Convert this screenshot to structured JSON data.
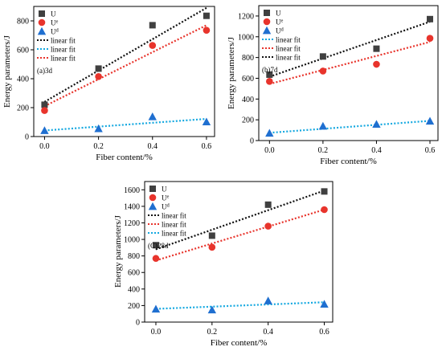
{
  "chart_data": [
    {
      "type": "scatter",
      "panel_label": "(a)3d",
      "xlabel": "Fiber content/%",
      "ylabel": "Energy parameters/J",
      "xlim": [
        -0.04,
        0.63
      ],
      "ylim": [
        0,
        900
      ],
      "xticks": [
        0.0,
        0.2,
        0.4,
        0.6
      ],
      "xtick_labels": [
        "0.0",
        "0.2",
        "0.4",
        "0.6"
      ],
      "yticks": [
        0,
        200,
        400,
        600,
        800
      ],
      "ytick_labels": [
        "0",
        "200",
        "400",
        "600",
        "800"
      ],
      "legend_position": "top-left",
      "x": [
        0.0,
        0.2,
        0.4,
        0.6
      ],
      "series": [
        {
          "name": "U",
          "sup": "",
          "marker": "square",
          "color": "#404040",
          "values": [
            220,
            470,
            770,
            835
          ]
        },
        {
          "name": "U",
          "sup": "e",
          "marker": "circle",
          "color": "#e8342c",
          "values": [
            180,
            415,
            630,
            735
          ]
        },
        {
          "name": "U",
          "sup": "d",
          "marker": "triangle",
          "color": "#1f6fd0",
          "values": [
            42,
            55,
            138,
            102
          ]
        }
      ],
      "fits": [
        {
          "label": "linear fit",
          "color": "#111111",
          "x": [
            0.0,
            0.6
          ],
          "y": [
            240,
            890
          ]
        },
        {
          "label": "linear fit",
          "color": "#14a8e0",
          "x": [
            0.0,
            0.6
          ],
          "y": [
            42,
            122
          ]
        },
        {
          "label": "linear fit",
          "color": "#e8342c",
          "x": [
            0.0,
            0.6
          ],
          "y": [
            210,
            770
          ]
        }
      ]
    },
    {
      "type": "scatter",
      "panel_label": "(b)7d",
      "xlabel": "Fiber content/%",
      "ylabel": "Energy parameters/J",
      "xlim": [
        -0.04,
        0.63
      ],
      "ylim": [
        0,
        1300
      ],
      "xticks": [
        0.0,
        0.2,
        0.4,
        0.6
      ],
      "xtick_labels": [
        "0.0",
        "0.2",
        "0.4",
        "0.6"
      ],
      "yticks": [
        0,
        200,
        400,
        600,
        800,
        1000,
        1200
      ],
      "ytick_labels": [
        "0",
        "200",
        "400",
        "600",
        "800",
        "1000",
        "1200"
      ],
      "legend_position": "top-left",
      "x": [
        0.0,
        0.2,
        0.4,
        0.6
      ],
      "series": [
        {
          "name": "U",
          "sup": "",
          "marker": "square",
          "color": "#404040",
          "values": [
            635,
            810,
            885,
            1170
          ]
        },
        {
          "name": "U",
          "sup": "e",
          "marker": "circle",
          "color": "#e8342c",
          "values": [
            570,
            670,
            735,
            985
          ]
        },
        {
          "name": "U",
          "sup": "d",
          "marker": "triangle",
          "color": "#1f6fd0",
          "values": [
            72,
            140,
            158,
            188
          ]
        }
      ],
      "fits": [
        {
          "label": "linear fit",
          "color": "#14a8e0",
          "x": [
            0.0,
            0.6
          ],
          "y": [
            75,
            190
          ]
        },
        {
          "label": "linear fit",
          "color": "#e8342c",
          "x": [
            0.0,
            0.6
          ],
          "y": [
            545,
            950
          ]
        },
        {
          "label": "linear fit",
          "color": "#111111",
          "x": [
            0.0,
            0.6
          ],
          "y": [
            615,
            1145
          ]
        }
      ]
    },
    {
      "type": "scatter",
      "panel_label": "(C)28d",
      "xlabel": "Fiber content/%",
      "ylabel": "Energy parameters/J",
      "xlim": [
        -0.04,
        0.63
      ],
      "ylim": [
        0,
        1700
      ],
      "xticks": [
        0.0,
        0.2,
        0.4,
        0.6
      ],
      "xtick_labels": [
        "0.0",
        "0.2",
        "0.4",
        "0.6"
      ],
      "yticks": [
        0,
        200,
        400,
        600,
        800,
        1000,
        1200,
        1400,
        1600
      ],
      "ytick_labels": [
        "0",
        "200",
        "400",
        "600",
        "800",
        "1000",
        "1200",
        "1400",
        "1600"
      ],
      "legend_position": "top-left",
      "x": [
        0.0,
        0.2,
        0.4,
        0.6
      ],
      "series": [
        {
          "name": "U",
          "sup": "",
          "marker": "square",
          "color": "#404040",
          "values": [
            930,
            1045,
            1420,
            1580
          ]
        },
        {
          "name": "U",
          "sup": "e",
          "marker": "circle",
          "color": "#e8342c",
          "values": [
            770,
            905,
            1160,
            1360
          ]
        },
        {
          "name": "U",
          "sup": "d",
          "marker": "triangle",
          "color": "#1f6fd0",
          "values": [
            158,
            148,
            258,
            218
          ]
        }
      ],
      "fits": [
        {
          "label": "linear fit",
          "color": "#111111",
          "x": [
            0.0,
            0.6
          ],
          "y": [
            880,
            1590
          ]
        },
        {
          "label": "linear fit",
          "color": "#e8342c",
          "x": [
            0.0,
            0.6
          ],
          "y": [
            745,
            1360
          ]
        },
        {
          "label": "linear fit",
          "color": "#14a8e0",
          "x": [
            0.0,
            0.6
          ],
          "y": [
            160,
            240
          ]
        }
      ]
    }
  ]
}
